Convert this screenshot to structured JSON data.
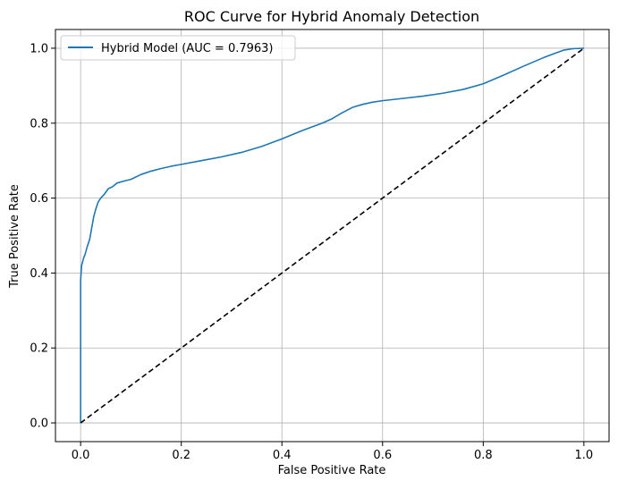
{
  "chart_data": {
    "type": "line",
    "title": "ROC Curve for Hybrid Anomaly Detection",
    "xlabel": "False Positive Rate",
    "ylabel": "True Positive Rate",
    "xlim": [
      -0.05,
      1.05
    ],
    "ylim": [
      -0.05,
      1.05
    ],
    "xticks": [
      0.0,
      0.2,
      0.4,
      0.6,
      0.8,
      1.0
    ],
    "xtick_labels": [
      "0.0",
      "0.2",
      "0.4",
      "0.6",
      "0.8",
      "1.0"
    ],
    "yticks": [
      0.0,
      0.2,
      0.4,
      0.6,
      0.8,
      1.0
    ],
    "ytick_labels": [
      "0.0",
      "0.2",
      "0.4",
      "0.6",
      "0.8",
      "1.0"
    ],
    "grid": true,
    "legend_position": "upper-left",
    "series": [
      {
        "name": "Hybrid Model (AUC = 0.7963)",
        "color": "#1f77b4",
        "style": "solid",
        "x": [
          0.0,
          0.0,
          0.001,
          0.002,
          0.004,
          0.006,
          0.009,
          0.013,
          0.018,
          0.022,
          0.026,
          0.03,
          0.035,
          0.04,
          0.047,
          0.055,
          0.063,
          0.072,
          0.085,
          0.1,
          0.12,
          0.14,
          0.16,
          0.18,
          0.2,
          0.24,
          0.28,
          0.32,
          0.36,
          0.4,
          0.44,
          0.48,
          0.5,
          0.52,
          0.54,
          0.56,
          0.58,
          0.6,
          0.64,
          0.68,
          0.72,
          0.76,
          0.8,
          0.84,
          0.88,
          0.92,
          0.96,
          0.98,
          1.0
        ],
        "y": [
          0.0,
          0.38,
          0.4,
          0.42,
          0.43,
          0.44,
          0.45,
          0.47,
          0.49,
          0.52,
          0.55,
          0.57,
          0.59,
          0.6,
          0.61,
          0.625,
          0.63,
          0.64,
          0.645,
          0.65,
          0.663,
          0.672,
          0.679,
          0.685,
          0.69,
          0.7,
          0.71,
          0.722,
          0.738,
          0.758,
          0.78,
          0.8,
          0.812,
          0.828,
          0.842,
          0.85,
          0.856,
          0.86,
          0.866,
          0.872,
          0.88,
          0.89,
          0.905,
          0.928,
          0.952,
          0.975,
          0.995,
          0.999,
          1.0
        ]
      },
      {
        "name": "",
        "color": "#000000",
        "style": "dashed",
        "x": [
          0.0,
          1.0
        ],
        "y": [
          0.0,
          1.0
        ]
      }
    ]
  }
}
